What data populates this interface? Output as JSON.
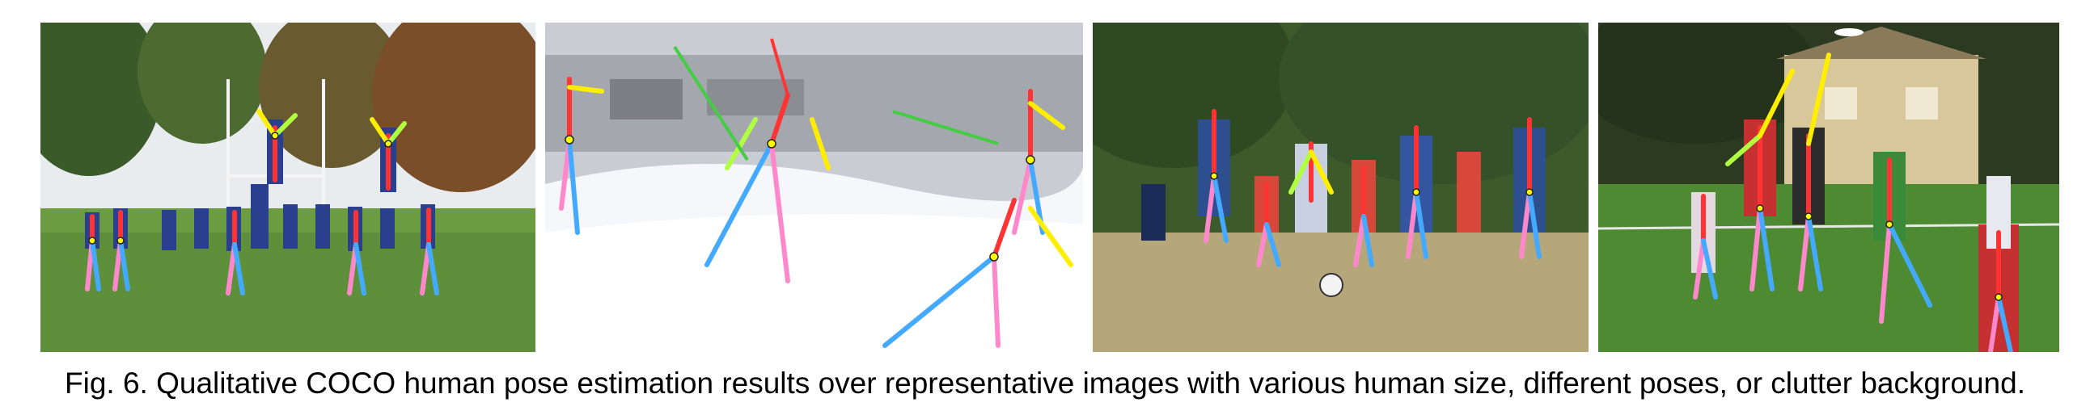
{
  "figure": {
    "caption_label": "Fig. 6.",
    "caption_text": "Qualitative COCO human pose estimation results over representative images with various human size, different poses, or clutter background.",
    "panels": [
      {
        "scene": "rugby-lineout"
      },
      {
        "scene": "cross-country-skiing"
      },
      {
        "scene": "children-soccer"
      },
      {
        "scene": "frisbee-game"
      }
    ],
    "colors": {
      "limb_right_arm": "#ffee00",
      "limb_left_arm": "#b0ff40",
      "limb_torso": "#ff3333",
      "limb_right_leg": "#ff88cc",
      "limb_left_leg": "#44aaff",
      "keypoint": "#ffff00"
    }
  }
}
